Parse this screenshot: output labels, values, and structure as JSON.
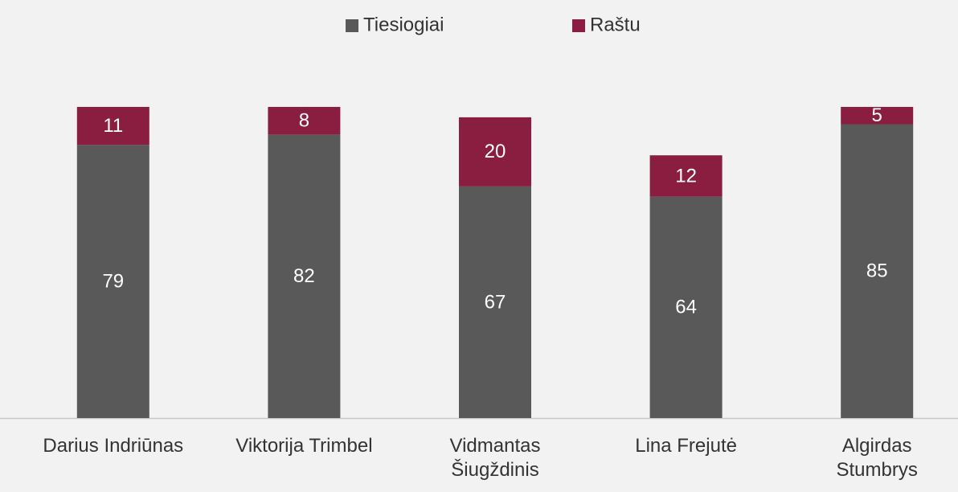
{
  "chart_data": {
    "type": "stacked_bar",
    "categories": [
      "Darius Indriūnas",
      "Viktorija Trimbel",
      "Vidmantas Šiugždinis",
      "Lina Frejutė",
      "Algirdas Stumbrys"
    ],
    "series": [
      {
        "name": "Tiesiogiai",
        "color": "#595959",
        "values": [
          79,
          82,
          67,
          64,
          85
        ]
      },
      {
        "name": "Raštu",
        "color": "#8a1e41",
        "values": [
          11,
          8,
          20,
          12,
          5
        ]
      }
    ],
    "ylim": [
      0,
      100
    ],
    "legend": "top"
  }
}
